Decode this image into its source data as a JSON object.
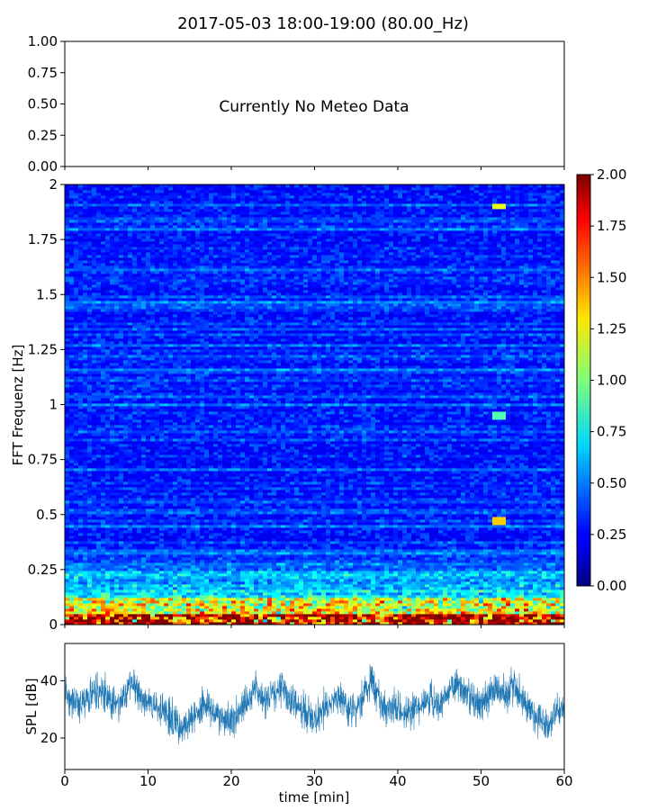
{
  "figure": {
    "title": "2017-05-03 18:00-19:00 (80.00_Hz)"
  },
  "chart_data": [
    {
      "type": "line",
      "panel": "meteo",
      "annotation": "Currently No Meteo Data",
      "ylim": [
        0,
        1
      ],
      "yticks": [
        "0.00",
        "0.25",
        "0.50",
        "0.75",
        "1.00"
      ],
      "xlim": [
        0,
        60
      ],
      "x": [],
      "values": []
    },
    {
      "type": "heatmap",
      "panel": "spectrogram",
      "xlim": [
        0,
        60
      ],
      "ylim": [
        0,
        2
      ],
      "ylabel": "FFT Frequenz [Hz]",
      "yticks": [
        "0",
        "0.25",
        "0.5",
        "0.75",
        "1",
        "1.25",
        "1.5",
        "1.75",
        "2"
      ],
      "colorbar": {
        "range": [
          0,
          2
        ],
        "ticks": [
          "0.00",
          "0.25",
          "0.50",
          "0.75",
          "1.00",
          "1.25",
          "1.50",
          "1.75",
          "2.00"
        ],
        "colormap": "jet"
      },
      "features": [
        {
          "x_range": [
            51.5,
            53
          ],
          "y": 1.9,
          "value": 1.2
        },
        {
          "x_range": [
            51.5,
            53
          ],
          "y": 0.95,
          "value": 0.9
        },
        {
          "x_range": [
            51.5,
            53
          ],
          "y": 0.47,
          "value": 1.35
        }
      ]
    },
    {
      "type": "line",
      "panel": "spl",
      "xlabel": "time [min]",
      "ylabel": "SPL [dB]",
      "xlim": [
        0,
        60
      ],
      "ylim": [
        9,
        53
      ],
      "xticks": [
        "0",
        "10",
        "20",
        "30",
        "40",
        "50",
        "60"
      ],
      "yticks": [
        "20",
        "40"
      ],
      "color": "#1f77b4",
      "x": [
        0,
        1,
        2,
        3,
        4,
        5,
        6,
        7,
        8,
        9,
        10,
        11,
        12,
        13,
        14,
        15,
        16,
        17,
        18,
        19,
        20,
        21,
        22,
        23,
        24,
        25,
        26,
        27,
        28,
        29,
        30,
        31,
        32,
        33,
        34,
        35,
        36,
        37,
        38,
        39,
        40,
        41,
        42,
        43,
        44,
        45,
        46,
        47,
        48,
        49,
        50,
        51,
        52,
        53,
        54,
        55,
        56,
        57,
        58,
        59,
        60
      ],
      "values": [
        35,
        33,
        31,
        36,
        37,
        35,
        33,
        32,
        40,
        35,
        32,
        30,
        29,
        27,
        24,
        26,
        30,
        32,
        29,
        27,
        25,
        30,
        33,
        38,
        32,
        35,
        38,
        33,
        31,
        29,
        26,
        30,
        33,
        35,
        31,
        29,
        37,
        39,
        33,
        29,
        31,
        28,
        30,
        32,
        34,
        31,
        36,
        39,
        36,
        33,
        31,
        34,
        37,
        35,
        39,
        33,
        28,
        27,
        25,
        28,
        30
      ],
      "band_halfwidth": 5
    }
  ]
}
